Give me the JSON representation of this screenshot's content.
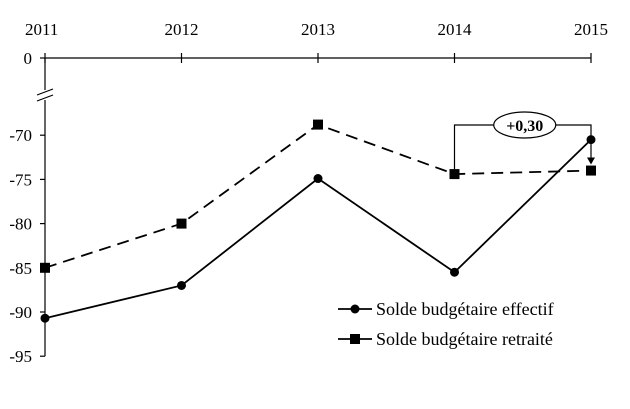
{
  "chart_data": {
    "type": "line",
    "title": "",
    "xlabel": "",
    "ylabel": "",
    "x": [
      "2011",
      "2012",
      "2013",
      "2014",
      "2015"
    ],
    "y_ticks": [
      "0",
      "-70",
      "-75",
      "-80",
      "-85",
      "-90",
      "-95"
    ],
    "ylim": [
      -95,
      -65
    ],
    "axis_break": true,
    "grid": false,
    "legend_position": "bottom-right",
    "series": [
      {
        "name": "Solde budgétaire effectif",
        "values": [
          -90.7,
          -87.0,
          -74.9,
          -85.5,
          -70.5
        ],
        "line": "solid",
        "marker": "circle",
        "color": "#000000"
      },
      {
        "name": "Solde budgétaire retraité",
        "values": [
          -85.0,
          -80.0,
          -68.8,
          -74.4,
          -74.0
        ],
        "line": "dashed",
        "marker": "square",
        "color": "#000000"
      }
    ],
    "annotation": {
      "label": "+0,30",
      "from_year": "2014",
      "to_year": "2015"
    }
  }
}
